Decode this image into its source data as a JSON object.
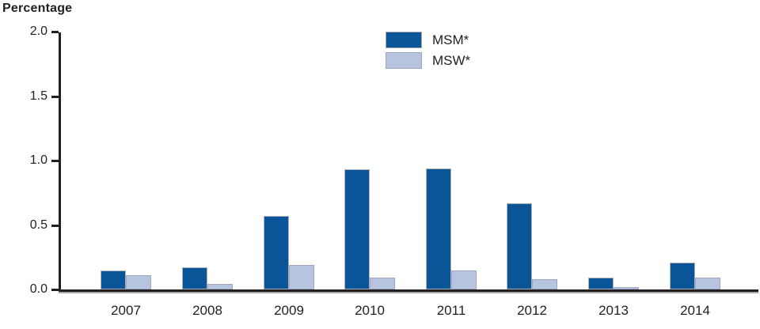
{
  "chart_data": {
    "type": "bar",
    "ylabel": "Percentage",
    "xlabel": "",
    "categories": [
      "2007",
      "2008",
      "2009",
      "2010",
      "2011",
      "2012",
      "2013",
      "2014"
    ],
    "series": [
      {
        "name": "MSM*",
        "color": "#0a5597",
        "values": [
          0.15,
          0.17,
          0.57,
          0.93,
          0.94,
          0.67,
          0.09,
          0.21
        ]
      },
      {
        "name": "MSW*",
        "color": "#b6c4e0",
        "values": [
          0.11,
          0.04,
          0.19,
          0.09,
          0.15,
          0.08,
          0.02,
          0.09
        ]
      }
    ],
    "ylim": [
      0.0,
      2.0
    ],
    "yticks": [
      "0.0",
      "0.5",
      "1.0",
      "1.5",
      "2.0"
    ],
    "grid": false,
    "legend_position": "top-center"
  },
  "colors": {
    "axis": "#231f20",
    "text": "#231f20",
    "background": "#ffffff",
    "msm_bar": "#0a5597",
    "msw_bar": "#b6c4e0"
  }
}
